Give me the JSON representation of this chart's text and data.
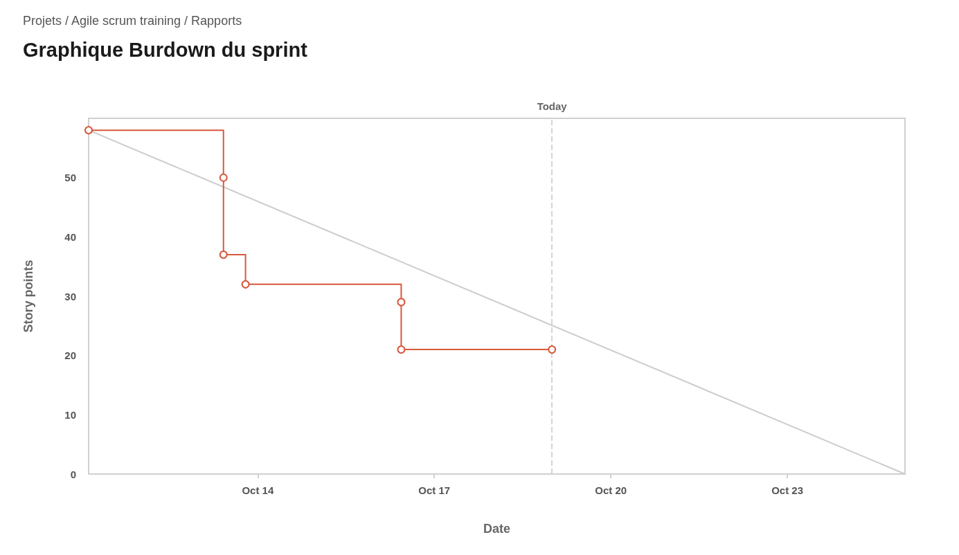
{
  "chart_data": {
    "type": "line",
    "title": "Graphique Burdown du sprint",
    "subtitle": "Projets / Agile scrum training / Rapports",
    "xlabel": "Date",
    "ylabel": "Story points",
    "xlim": [
      "--10-11T03:00",
      "--10-25T00:00"
    ],
    "xticks": [
      {
        "value": "--10-14",
        "label": "Oct 14"
      },
      {
        "value": "--10-17",
        "label": "Oct 17"
      },
      {
        "value": "--10-20",
        "label": "Oct 20"
      },
      {
        "value": "--10-23",
        "label": "Oct 23"
      }
    ],
    "ylim": [
      0,
      60
    ],
    "yticks": [
      0,
      10,
      20,
      30,
      40,
      50
    ],
    "grid": false,
    "marker": "circle",
    "line_style": "solid",
    "series": [
      {
        "type": "step",
        "color": "#d9573b",
        "x": [
          "--10-11T03:00",
          "--10-13T10:00",
          "--10-13T10:00",
          "--10-13T19:00",
          "--10-16T10:30",
          "--10-16T10:30",
          "--10-19T00:00"
        ],
        "values": [
          58,
          50,
          37,
          32,
          29,
          21,
          21
        ]
      },
      {
        "color": "#cccccc",
        "marker": "none",
        "x": [
          "--10-11T03:00",
          "--10-25T00:00"
        ],
        "values": [
          58,
          0
        ]
      }
    ],
    "ref_lines": [
      {
        "axis": "x",
        "value": "--10-19T00:00",
        "label": "Today",
        "color": "#d4d4d4",
        "line_style": "dashed"
      }
    ]
  }
}
